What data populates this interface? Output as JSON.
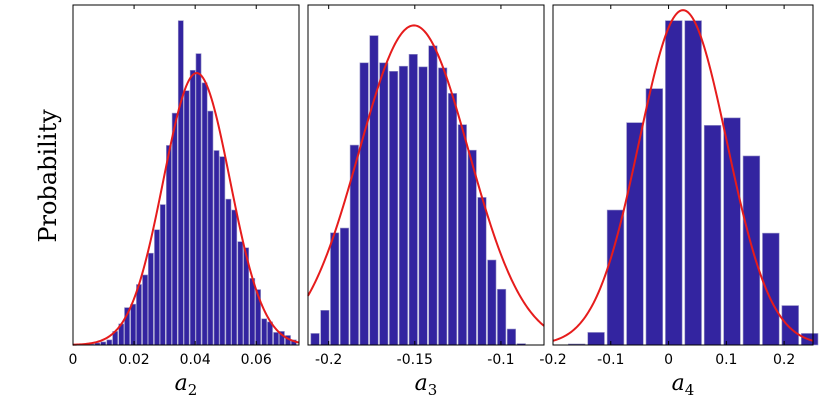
{
  "ylabel": "Probability",
  "chart_data": [
    {
      "type": "bar",
      "xlabel_base": "a",
      "xlabel_sub": "2",
      "xlim": [
        0,
        0.074
      ],
      "ylim": [
        0,
        1.0
      ],
      "xticks": [
        0,
        0.02,
        0.04,
        0.06
      ],
      "xtick_labels": [
        "0",
        "0.02",
        "0.04",
        "0.06"
      ],
      "bin_width": 0.00195,
      "bins_x": [
        0.006,
        0.008,
        0.0099,
        0.0119,
        0.0138,
        0.0158,
        0.0177,
        0.0197,
        0.0216,
        0.0236,
        0.0255,
        0.0275,
        0.0294,
        0.0314,
        0.0333,
        0.0353,
        0.0372,
        0.0392,
        0.0411,
        0.0431,
        0.045,
        0.047,
        0.0489,
        0.0509,
        0.0528,
        0.0548,
        0.0567,
        0.0587,
        0.0606,
        0.0626,
        0.0645,
        0.0665,
        0.0684,
        0.0704,
        0.0723
      ],
      "bins_y": [
        0.003,
        0.006,
        0.009,
        0.015,
        0.04,
        0.062,
        0.11,
        0.12,
        0.178,
        0.206,
        0.27,
        0.339,
        0.413,
        0.587,
        0.682,
        0.954,
        0.748,
        0.808,
        0.857,
        0.771,
        0.688,
        0.572,
        0.554,
        0.429,
        0.397,
        0.304,
        0.286,
        0.196,
        0.163,
        0.077,
        0.068,
        0.037,
        0.04,
        0.028,
        0.015
      ],
      "fit": {
        "mu": 0.0405,
        "sigma": 0.0109,
        "peak": 0.8
      }
    },
    {
      "type": "bar",
      "xlabel_base": "a",
      "xlabel_sub": "3",
      "xlim": [
        -0.212,
        -0.075
      ],
      "ylim": [
        0,
        1.0
      ],
      "xticks": [
        -0.2,
        -0.15,
        -0.1
      ],
      "xtick_labels": [
        "-0.2",
        "-0.15",
        "-0.1"
      ],
      "bin_width": 0.0057,
      "bins_x": [
        -0.2079,
        -0.2022,
        -0.1965,
        -0.1908,
        -0.1851,
        -0.1794,
        -0.1737,
        -0.168,
        -0.1623,
        -0.1566,
        -0.1509,
        -0.1452,
        -0.1395,
        -0.1338,
        -0.1281,
        -0.1224,
        -0.1167,
        -0.111,
        -0.1053,
        -0.0996,
        -0.0939,
        -0.0882
      ],
      "bins_y": [
        0.034,
        0.102,
        0.33,
        0.344,
        0.588,
        0.83,
        0.91,
        0.83,
        0.805,
        0.82,
        0.855,
        0.818,
        0.88,
        0.815,
        0.74,
        0.648,
        0.573,
        0.434,
        0.25,
        0.164,
        0.047,
        0.004
      ],
      "fit": {
        "mu": -0.1505,
        "sigma": 0.0318,
        "peak": 0.94
      }
    },
    {
      "type": "bar",
      "xlabel_base": "a",
      "xlabel_sub": "4",
      "xlim": [
        -0.2,
        0.25
      ],
      "ylim": [
        0,
        1.0
      ],
      "xticks": [
        -0.2,
        -0.1,
        0,
        0.1,
        0.2
      ],
      "xtick_labels": [
        "-0.2",
        "-0.1",
        "0",
        "0.1",
        "0.2"
      ],
      "bin_width": 0.0336,
      "bins_x": [
        -0.159,
        -0.1254,
        -0.0918,
        -0.0582,
        -0.0246,
        0.009,
        0.0426,
        0.0762,
        0.1098,
        0.1434,
        0.177,
        0.2106,
        0.2442
      ],
      "bins_y": [
        0.003,
        0.037,
        0.397,
        0.654,
        0.754,
        0.954,
        0.954,
        0.646,
        0.668,
        0.556,
        0.329,
        0.116,
        0.034
      ],
      "fit": {
        "mu": 0.025,
        "sigma": 0.076,
        "peak": 0.985
      }
    }
  ]
}
